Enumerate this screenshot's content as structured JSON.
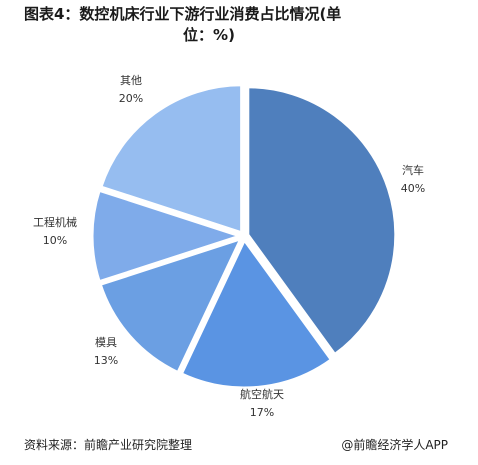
{
  "title_line1": "图表4：数控机床行业下游行业消费占比情况(单",
  "title_line2": "位：%)",
  "source": "资料来源：前瞻产业研究院整理",
  "credit": "@前瞻经济学人APP",
  "chart_data": {
    "type": "pie",
    "unit": "%",
    "slices": [
      {
        "label": "汽车",
        "value": 40,
        "value_text": "40%",
        "color": "#4f7fbd"
      },
      {
        "label": "航空航天",
        "value": 17,
        "value_text": "17%",
        "color": "#5a94e3"
      },
      {
        "label": "模具",
        "value": 13,
        "value_text": "13%",
        "color": "#6b9fe3"
      },
      {
        "label": "工程机械",
        "value": 10,
        "value_text": "10%",
        "color": "#7fabea"
      },
      {
        "label": "其他",
        "value": 20,
        "value_text": "20%",
        "color": "#96bdf0"
      }
    ]
  }
}
